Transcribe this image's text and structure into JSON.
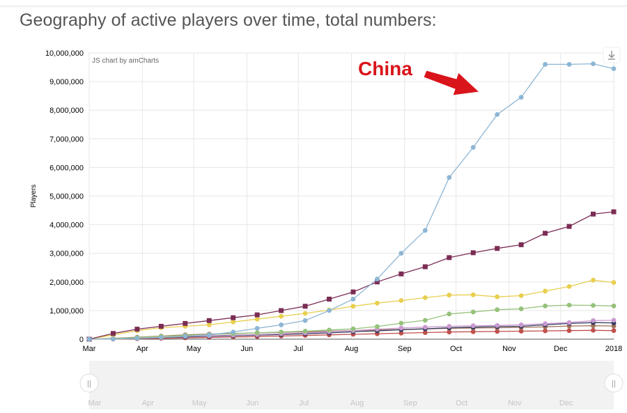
{
  "header": {
    "title": "Geography of active players over time, total numbers:"
  },
  "chart_credit": "JS chart by amCharts",
  "annotation": {
    "text": "China",
    "color": "#d9141b"
  },
  "scrollbar": {
    "left_handle": "||",
    "right_handle": "||"
  },
  "download_icon": "download-icon",
  "chart_data": {
    "type": "line",
    "title": "Geography of active players over time, total numbers:",
    "xlabel": "",
    "ylabel": "Players",
    "ylim": [
      0,
      10000000
    ],
    "y_ticks": [
      0,
      1000000,
      2000000,
      3000000,
      4000000,
      5000000,
      6000000,
      7000000,
      8000000,
      9000000,
      10000000
    ],
    "y_tick_labels": [
      "0",
      "1,000,000",
      "2,000,000",
      "3,000,000",
      "4,000,000",
      "5,000,000",
      "6,000,000",
      "7,000,000",
      "8,000,000",
      "9,000,000",
      "10,000,000"
    ],
    "xlim": [
      "2017-03-01",
      "2018-01-01"
    ],
    "x_tick_labels": [
      "Mar",
      "Apr",
      "May",
      "Jun",
      "Jul",
      "Aug",
      "Sep",
      "Oct",
      "Nov",
      "Dec",
      "2018"
    ],
    "x_tick_dates": [
      "2017-03-01",
      "2017-04-01",
      "2017-05-01",
      "2017-06-01",
      "2017-07-01",
      "2017-08-01",
      "2017-09-01",
      "2017-10-01",
      "2017-11-01",
      "2017-12-01",
      "2018-01-01"
    ],
    "grid": true,
    "legend": "none",
    "x": [
      "2017-03-01",
      "2017-03-15",
      "2017-03-29",
      "2017-04-12",
      "2017-04-26",
      "2017-05-10",
      "2017-05-24",
      "2017-06-07",
      "2017-06-21",
      "2017-07-05",
      "2017-07-19",
      "2017-08-02",
      "2017-08-16",
      "2017-08-30",
      "2017-09-13",
      "2017-09-27",
      "2017-10-11",
      "2017-10-25",
      "2017-11-08",
      "2017-11-22",
      "2017-12-06",
      "2017-12-20",
      "2018-01-01"
    ],
    "series": [
      {
        "color": "#8db6d4",
        "marker": "circle",
        "annotation": "China",
        "values": [
          0,
          10000,
          30000,
          60000,
          100000,
          150000,
          250000,
          380000,
          500000,
          650000,
          1000000,
          1400000,
          2100000,
          3000000,
          3800000,
          5650000,
          6700000,
          7850000,
          8450000,
          9600000,
          9600000,
          9620000,
          9450000
        ]
      },
      {
        "color": "#7b2d55",
        "marker": "square",
        "values": [
          0,
          200000,
          350000,
          450000,
          550000,
          650000,
          750000,
          850000,
          1000000,
          1150000,
          1400000,
          1650000,
          2000000,
          2280000,
          2530000,
          2850000,
          3020000,
          3170000,
          3300000,
          3700000,
          3940000,
          4370000,
          4450000
        ]
      },
      {
        "color": "#e8cf4f",
        "marker": "circle",
        "values": [
          0,
          150000,
          300000,
          400000,
          450000,
          500000,
          600000,
          700000,
          800000,
          900000,
          1020000,
          1150000,
          1260000,
          1350000,
          1450000,
          1540000,
          1550000,
          1480000,
          1520000,
          1680000,
          1840000,
          2060000,
          1980000
        ]
      },
      {
        "color": "#95c17a",
        "marker": "circle",
        "values": [
          0,
          20000,
          60000,
          100000,
          130000,
          160000,
          190000,
          220000,
          250000,
          280000,
          320000,
          360000,
          440000,
          560000,
          660000,
          880000,
          950000,
          1030000,
          1060000,
          1160000,
          1190000,
          1180000,
          1160000
        ]
      },
      {
        "color": "#c99ad0",
        "marker": "circle",
        "values": [
          0,
          10000,
          40000,
          70000,
          100000,
          120000,
          140000,
          160000,
          190000,
          220000,
          260000,
          300000,
          350000,
          390000,
          420000,
          450000,
          470000,
          480000,
          500000,
          540000,
          580000,
          650000,
          660000
        ]
      },
      {
        "color": "#343a5e",
        "marker": "circle",
        "values": [
          0,
          10000,
          30000,
          60000,
          80000,
          100000,
          120000,
          140000,
          160000,
          190000,
          220000,
          260000,
          290000,
          330000,
          360000,
          400000,
          420000,
          440000,
          450000,
          500000,
          550000,
          580000,
          570000
        ]
      },
      {
        "color": "#a0745a",
        "marker": "circle",
        "values": [
          0,
          30000,
          70000,
          110000,
          150000,
          180000,
          200000,
          220000,
          240000,
          260000,
          280000,
          300000,
          320000,
          340000,
          360000,
          380000,
          390000,
          400000,
          410000,
          430000,
          460000,
          470000,
          460000
        ]
      },
      {
        "color": "#c0504d",
        "marker": "circle",
        "values": [
          0,
          5000,
          15000,
          30000,
          45000,
          60000,
          75000,
          90000,
          110000,
          130000,
          150000,
          170000,
          190000,
          210000,
          230000,
          250000,
          260000,
          270000,
          280000,
          290000,
          300000,
          310000,
          300000
        ]
      }
    ]
  }
}
